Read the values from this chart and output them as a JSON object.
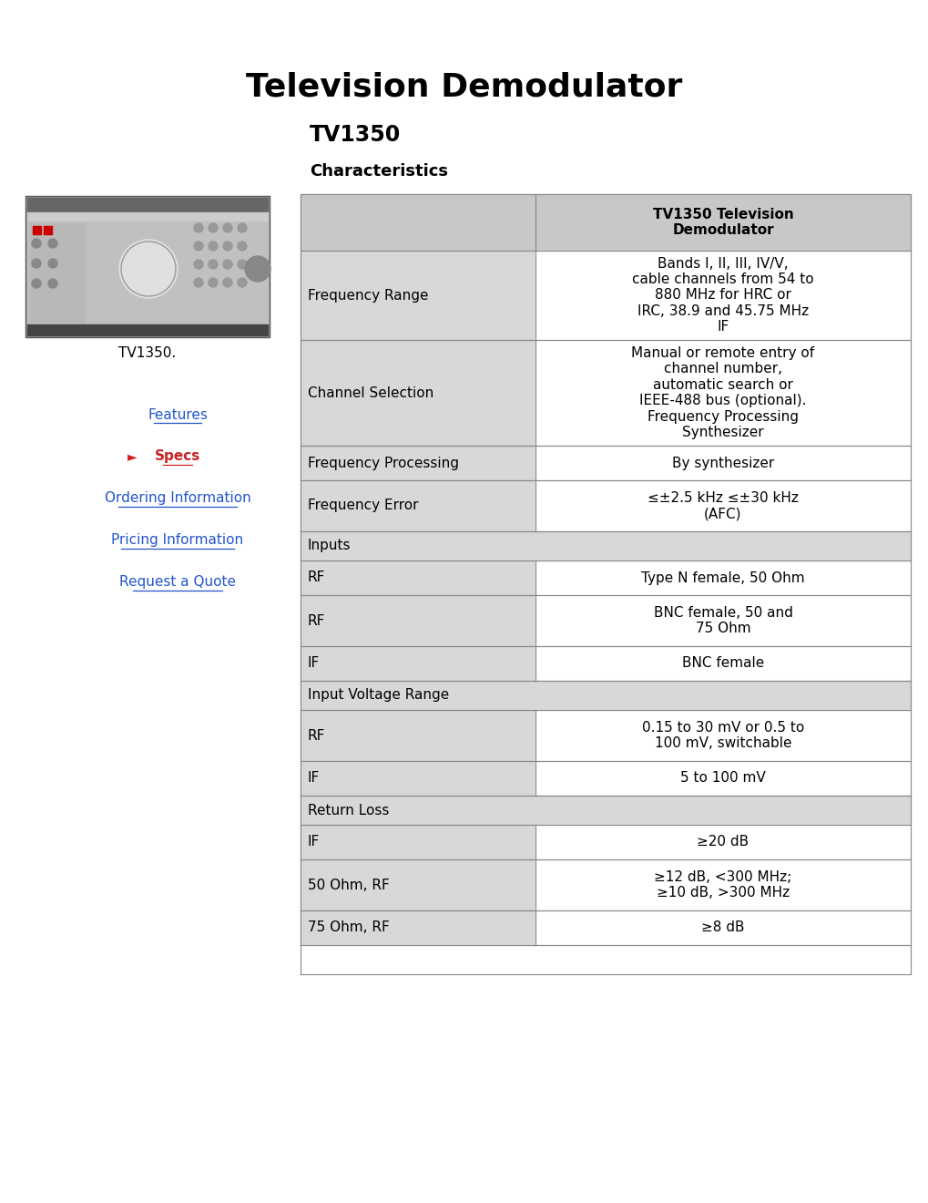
{
  "title": "Television Demodulator",
  "subtitle": "TV1350",
  "section_label": "Characteristics",
  "bg_color": "#ffffff",
  "table_header_bg": "#c8c8c8",
  "table_border_color": "#888888",
  "left_links": [
    "Features",
    "Specs",
    "Ordering Information",
    "Pricing Information",
    "Request a Quote"
  ],
  "left_links_colors": [
    "#2255cc",
    "#cc2222",
    "#2255cc",
    "#2255cc",
    "#2255cc"
  ],
  "left_links_bold": [
    false,
    true,
    false,
    false,
    false
  ],
  "image_caption": "TV1350.",
  "col_header": "TV1350 Television\nDemodulator",
  "rows": [
    {
      "label": "Frequency Range",
      "value": "Bands I, II, III, IV/V,\ncable channels from 54 to\n880 MHz for HRC or\nIRC, 38.9 and 45.75 MHz\nIF",
      "type": "data",
      "label_bg": "#d8d8d8",
      "value_bg": "#ffffff"
    },
    {
      "label": "Channel Selection",
      "value": "Manual or remote entry of\nchannel number,\nautomatic search or\nIEEE-488 bus (optional).\nFrequency Processing\nSynthesizer",
      "type": "data",
      "label_bg": "#d8d8d8",
      "value_bg": "#ffffff"
    },
    {
      "label": "Frequency Processing",
      "value": "By synthesizer",
      "type": "data",
      "label_bg": "#d8d8d8",
      "value_bg": "#ffffff"
    },
    {
      "label": "Frequency Error",
      "value": "≤±2.5 kHz ≤±30 kHz\n(AFC)",
      "type": "data",
      "label_bg": "#d8d8d8",
      "value_bg": "#ffffff"
    },
    {
      "label": "Inputs",
      "value": "",
      "type": "section",
      "label_bg": "#d8d8d8",
      "value_bg": "#d8d8d8"
    },
    {
      "label": "RF",
      "value": "Type N female, 50 Ohm",
      "type": "data",
      "label_bg": "#d8d8d8",
      "value_bg": "#ffffff"
    },
    {
      "label": "RF",
      "value": "BNC female, 50 and\n75 Ohm",
      "type": "data",
      "label_bg": "#d8d8d8",
      "value_bg": "#ffffff"
    },
    {
      "label": "IF",
      "value": "BNC female",
      "type": "data",
      "label_bg": "#d8d8d8",
      "value_bg": "#ffffff"
    },
    {
      "label": "Input Voltage Range",
      "value": "",
      "type": "section",
      "label_bg": "#d8d8d8",
      "value_bg": "#d8d8d8"
    },
    {
      "label": "RF",
      "value": "0.15 to 30 mV or 0.5 to\n100 mV, switchable",
      "type": "data",
      "label_bg": "#d8d8d8",
      "value_bg": "#ffffff"
    },
    {
      "label": "IF",
      "value": "5 to 100 mV",
      "type": "data",
      "label_bg": "#d8d8d8",
      "value_bg": "#ffffff"
    },
    {
      "label": "Return Loss",
      "value": "",
      "type": "section",
      "label_bg": "#d8d8d8",
      "value_bg": "#d8d8d8"
    },
    {
      "label": "IF",
      "value": "≥20 dB",
      "type": "data",
      "label_bg": "#d8d8d8",
      "value_bg": "#ffffff"
    },
    {
      "label": "50 Ohm, RF",
      "value": "≥12 dB, <300 MHz;\n≥10 dB, >300 MHz",
      "type": "data",
      "label_bg": "#d8d8d8",
      "value_bg": "#ffffff"
    },
    {
      "label": "75 Ohm, RF",
      "value": "≥8 dB",
      "type": "data",
      "label_bg": "#d8d8d8",
      "value_bg": "#ffffff"
    },
    {
      "label": "",
      "value": "",
      "type": "empty",
      "label_bg": "#ffffff",
      "value_bg": "#ffffff"
    }
  ]
}
